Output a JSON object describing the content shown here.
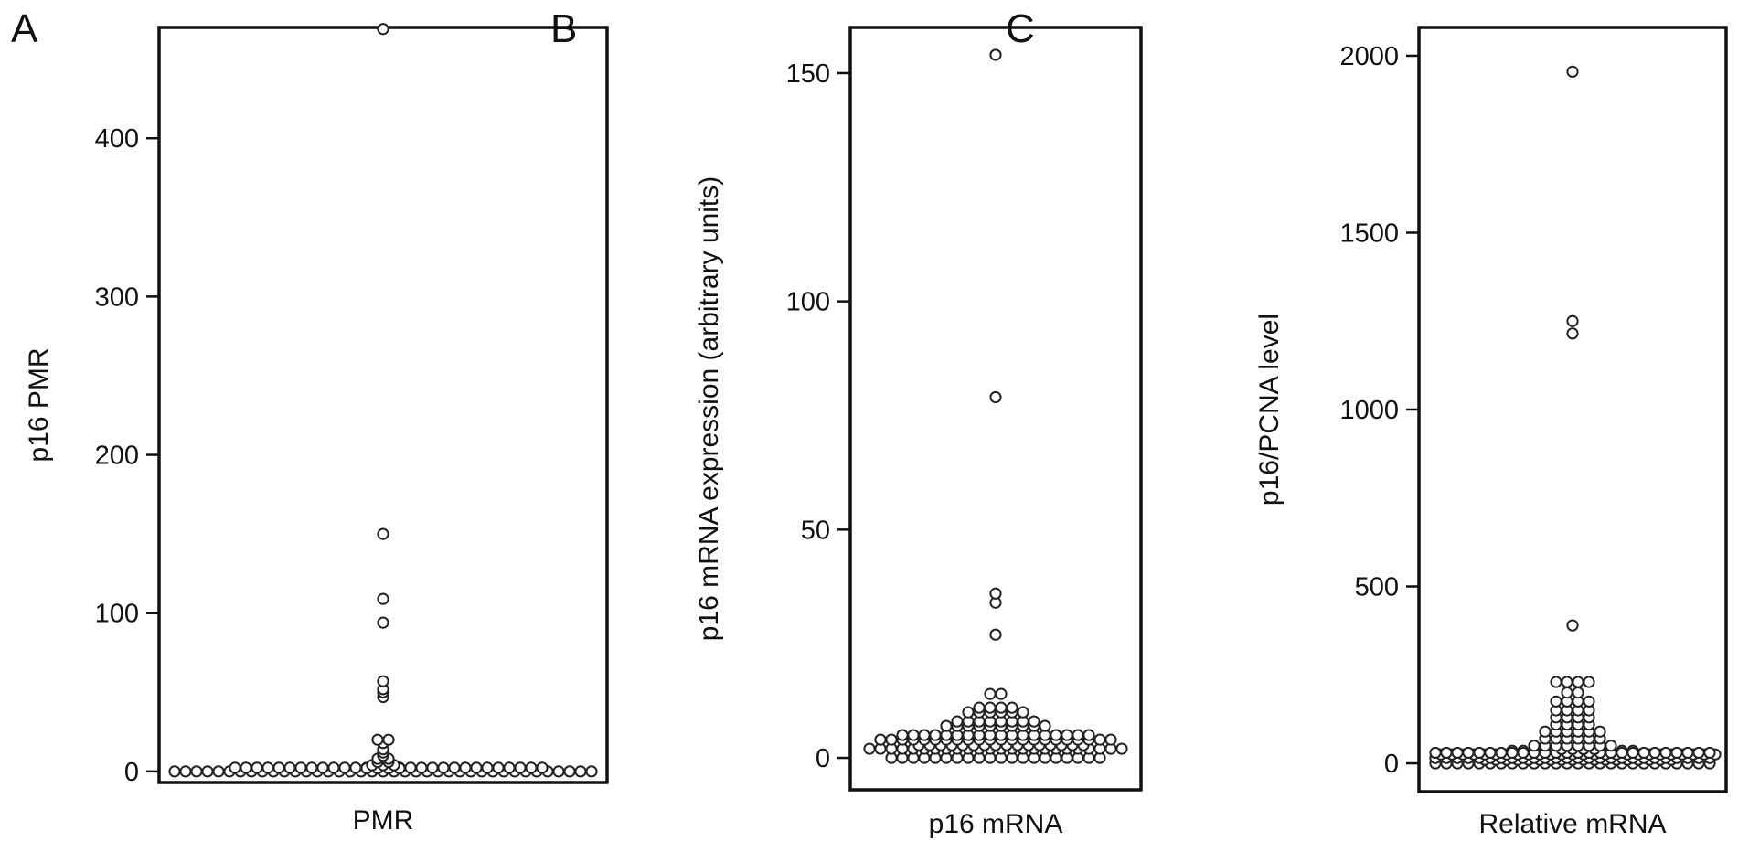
{
  "panels": [
    {
      "letter": "A"
    },
    {
      "letter": "B"
    },
    {
      "letter": "C"
    }
  ],
  "chart_data": [
    {
      "type": "scatter",
      "style": "dot-plot",
      "title": "",
      "xlabel": "PMR",
      "ylabel": "p16 PMR",
      "ylim": [
        -7,
        470
      ],
      "yticks": [
        0,
        100,
        200,
        300,
        400
      ],
      "grid": false,
      "legend": "none",
      "values": [
        0,
        0,
        0,
        0,
        0,
        0,
        0,
        0,
        0,
        0,
        0,
        0,
        0,
        0,
        0,
        0,
        0,
        0,
        0,
        0,
        0,
        0,
        0,
        0,
        0,
        0,
        0,
        0,
        0,
        0,
        0,
        0,
        0,
        0,
        0,
        0,
        0,
        0,
        0,
        0,
        0,
        0,
        0,
        0,
        0,
        0,
        0,
        0,
        0,
        0,
        0,
        0,
        0,
        0,
        0,
        0,
        0,
        0,
        0,
        0,
        0,
        0,
        0,
        0,
        0,
        0,
        0,
        0,
        2,
        2,
        2,
        2,
        4,
        4,
        4,
        6,
        6,
        8,
        8,
        10,
        12,
        14,
        18,
        20,
        20,
        47,
        50,
        52,
        57,
        94,
        109,
        150,
        469
      ]
    },
    {
      "type": "scatter",
      "style": "dot-plot",
      "title": "",
      "xlabel": "p16 mRNA",
      "ylabel": "p16 mRNA expression (arbitrary units)",
      "ylim": [
        -7,
        160
      ],
      "yticks": [
        0,
        50,
        100,
        150
      ],
      "grid": false,
      "legend": "none",
      "values": [
        0,
        0,
        0,
        0,
        0,
        0,
        0,
        0,
        0,
        0,
        0,
        0,
        0,
        0,
        0,
        0,
        0,
        0,
        0,
        0,
        2,
        2,
        2,
        2,
        2,
        2,
        2,
        2,
        2,
        2,
        2,
        2,
        2,
        2,
        2,
        2,
        2,
        2,
        2,
        2,
        2,
        2,
        2,
        2,
        2,
        2,
        2,
        2,
        2,
        2,
        2,
        2,
        2,
        2,
        2,
        2,
        2,
        2,
        2,
        2,
        4,
        4,
        4,
        4,
        4,
        4,
        4,
        4,
        4,
        4,
        4,
        4,
        4,
        4,
        4,
        4,
        4,
        4,
        4,
        4,
        4,
        4,
        5,
        5,
        5,
        5,
        5,
        5,
        5,
        5,
        5,
        5,
        5,
        5,
        5,
        5,
        5,
        5,
        5,
        5,
        7,
        7,
        7,
        7,
        7,
        7,
        7,
        7,
        7,
        7,
        8,
        8,
        8,
        8,
        8,
        8,
        8,
        8,
        10,
        10,
        10,
        10,
        10,
        10,
        11,
        11,
        11,
        11,
        14,
        14,
        27,
        34,
        36,
        79,
        154
      ]
    },
    {
      "type": "scatter",
      "style": "dot-plot",
      "title": "",
      "xlabel": "Relative mRNA",
      "ylabel": "p16/PCNA level",
      "ylim": [
        -80,
        2080
      ],
      "yticks": [
        0,
        500,
        1000,
        1500,
        2000
      ],
      "grid": false,
      "legend": "none",
      "values": [
        0,
        0,
        0,
        0,
        0,
        0,
        0,
        0,
        0,
        0,
        0,
        0,
        0,
        0,
        0,
        0,
        0,
        0,
        0,
        0,
        0,
        0,
        0,
        0,
        0,
        0,
        0,
        0,
        0,
        0,
        0,
        0,
        0,
        0,
        0,
        0,
        0,
        0,
        0,
        0,
        0,
        0,
        0,
        0,
        15,
        15,
        15,
        15,
        15,
        15,
        15,
        15,
        15,
        15,
        15,
        15,
        15,
        15,
        15,
        15,
        15,
        15,
        15,
        15,
        15,
        15,
        15,
        15,
        15,
        15,
        15,
        15,
        15,
        15,
        15,
        15,
        15,
        15,
        15,
        15,
        15,
        15,
        15,
        15,
        15,
        15,
        15,
        15,
        15,
        15,
        15,
        15,
        15,
        15,
        15,
        15,
        15,
        15,
        15,
        15,
        15,
        15,
        15,
        15,
        15,
        15,
        15,
        15,
        30,
        30,
        30,
        30,
        30,
        30,
        30,
        30,
        30,
        30,
        30,
        30,
        30,
        30,
        30,
        30,
        30,
        30,
        30,
        30,
        30,
        30,
        30,
        30,
        30,
        30,
        30,
        30,
        30,
        30,
        50,
        50,
        50,
        50,
        50,
        50,
        50,
        50,
        70,
        70,
        70,
        70,
        70,
        70,
        90,
        90,
        90,
        90,
        90,
        90,
        110,
        110,
        110,
        110,
        130,
        130,
        130,
        130,
        150,
        150,
        150,
        150,
        175,
        175,
        175,
        175,
        200,
        200,
        230,
        230,
        230,
        230,
        390,
        1215,
        1250,
        1955
      ]
    }
  ]
}
